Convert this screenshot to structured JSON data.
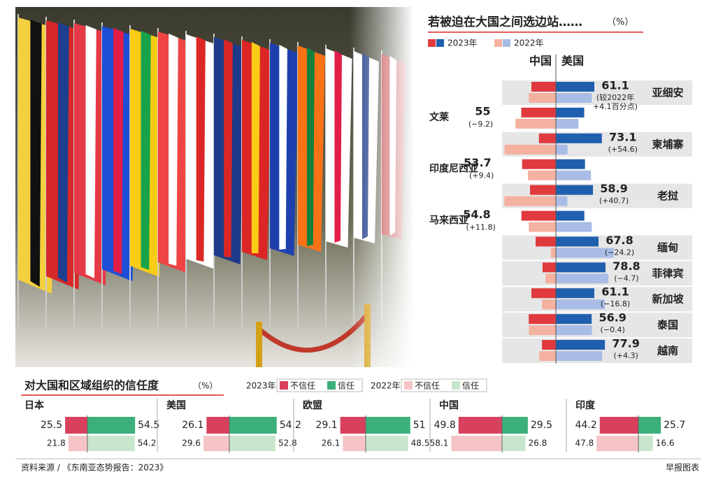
{
  "chart_data": [
    {
      "type": "bar",
      "title": "若被迫在大国之间选边站……",
      "unit": "（%）",
      "sides": [
        "中国",
        "美国"
      ],
      "series": [
        {
          "name": "2023年",
          "colors": [
            "#e03a3e",
            "#1f5fae"
          ]
        },
        {
          "name": "2022年",
          "colors": [
            "#f4b1a0",
            "#a9bce6"
          ]
        }
      ],
      "rows": [
        {
          "country": "亚细安",
          "china": [
            38.9,
            43.0
          ],
          "us": [
            61.1,
            57.0
          ],
          "change": [
            "(较2022年",
            "+4.1百分点)"
          ]
        },
        {
          "country": "文莱",
          "china": [
            55,
            64.2
          ],
          "us": [
            45,
            35.8
          ],
          "change": [
            "(−9.2)"
          ]
        },
        {
          "country": "柬埔寨",
          "china": [
            26.9,
            81.5
          ],
          "us": [
            73.1,
            18.5
          ],
          "change": [
            "(+54.6)"
          ]
        },
        {
          "country": "印度尼西亚",
          "china": [
            53.7,
            44.3
          ],
          "us": [
            46.3,
            55.7
          ],
          "change": [
            "(+9.4)"
          ]
        },
        {
          "country": "老挝",
          "china": [
            41.1,
            81.8
          ],
          "us": [
            58.9,
            18.2
          ],
          "change": [
            "(+40.7)"
          ]
        },
        {
          "country": "马来西亚",
          "china": [
            54.8,
            43.0
          ],
          "us": [
            45.2,
            57.0
          ],
          "change": [
            "(+11.8)"
          ]
        },
        {
          "country": "缅甸",
          "china": [
            32.2,
            8.0
          ],
          "us": [
            67.8,
            92.0
          ],
          "change": [
            "(−24.2)"
          ]
        },
        {
          "country": "菲律宾",
          "china": [
            21.2,
            16.5
          ],
          "us": [
            78.8,
            83.5
          ],
          "change": [
            "(−4.7)"
          ]
        },
        {
          "country": "新加坡",
          "china": [
            38.9,
            22.1
          ],
          "us": [
            61.1,
            77.9
          ],
          "change": [
            "(−16.8)"
          ]
        },
        {
          "country": "泰国",
          "china": [
            43.1,
            42.7
          ],
          "us": [
            56.9,
            57.3
          ],
          "change": [
            "(−0.4)"
          ]
        },
        {
          "country": "越南",
          "china": [
            22.1,
            26.4
          ],
          "us": [
            77.9,
            73.6
          ],
          "change": [
            "(+4.3)"
          ]
        }
      ]
    },
    {
      "type": "bar",
      "title": "对大国和区域组织的信任度",
      "unit": "（%）",
      "series": [
        {
          "name": "2023年",
          "labels": [
            "不信任",
            "信任"
          ],
          "colors": [
            "#d8415e",
            "#3bb07a"
          ]
        },
        {
          "name": "2022年",
          "labels": [
            "不信任",
            "信任"
          ],
          "colors": [
            "#f6c4c6",
            "#c8e6cc"
          ]
        }
      ],
      "groups": [
        {
          "name": "日本",
          "values": [
            [
              25.5,
              54.5
            ],
            [
              21.8,
              54.2
            ]
          ]
        },
        {
          "name": "美国",
          "values": [
            [
              26.1,
              54.2
            ],
            [
              29.6,
              52.8
            ]
          ]
        },
        {
          "name": "欧盟",
          "values": [
            [
              29.1,
              51
            ],
            [
              26.1,
              48.5
            ]
          ]
        },
        {
          "name": "中国",
          "values": [
            [
              49.8,
              29.5
            ],
            [
              58.1,
              26.8
            ]
          ]
        },
        {
          "name": "印度",
          "values": [
            [
              44.2,
              25.7
            ],
            [
              47.8,
              16.6
            ]
          ]
        }
      ]
    }
  ],
  "footer": {
    "source": "资料来源 / 《东南亚态势报告：2023》",
    "credit": "早报图表"
  }
}
